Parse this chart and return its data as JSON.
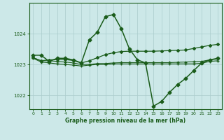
{
  "bg_color": "#cce8e8",
  "grid_color": "#aacccc",
  "line_color": "#1a5c1a",
  "title": "Graphe pression niveau de la mer (hPa)",
  "xlim": [
    -0.5,
    23.5
  ],
  "ylim": [
    1021.55,
    1025.0
  ],
  "yticks": [
    1022,
    1023,
    1024
  ],
  "xticks": [
    0,
    1,
    2,
    3,
    4,
    5,
    6,
    7,
    8,
    9,
    10,
    11,
    12,
    13,
    14,
    15,
    16,
    17,
    18,
    19,
    20,
    21,
    22,
    23
  ],
  "series": [
    {
      "x": [
        0,
        1,
        2,
        3,
        4,
        5,
        6,
        7,
        8,
        9,
        10,
        11,
        12,
        13,
        14,
        15,
        16,
        17,
        18,
        19,
        20,
        21,
        22,
        23
      ],
      "y": [
        1023.3,
        1023.3,
        1023.1,
        1023.2,
        1023.2,
        1023.15,
        1023.05,
        1023.8,
        1024.05,
        1024.55,
        1024.62,
        1024.15,
        1023.5,
        1023.15,
        1023.05,
        1021.65,
        1021.8,
        1022.1,
        1022.35,
        1022.55,
        1022.8,
        1023.05,
        1023.15,
        1023.2
      ],
      "marker": "D",
      "markersize": 2.5,
      "linewidth": 1.1,
      "linestyle": "-"
    },
    {
      "x": [
        0,
        1,
        2,
        3,
        4,
        5,
        6,
        7,
        8,
        9,
        10,
        11,
        12,
        13,
        14,
        15,
        16,
        17,
        18,
        19,
        20,
        21,
        22,
        23
      ],
      "y": [
        1023.22,
        1023.12,
        1023.15,
        1023.16,
        1023.16,
        1023.13,
        1023.05,
        1023.12,
        1023.22,
        1023.32,
        1023.38,
        1023.42,
        1023.43,
        1023.43,
        1023.43,
        1023.43,
        1023.44,
        1023.45,
        1023.46,
        1023.47,
        1023.52,
        1023.57,
        1023.62,
        1023.65
      ],
      "marker": "D",
      "markersize": 2.0,
      "linewidth": 0.9,
      "linestyle": "-"
    },
    {
      "x": [
        0,
        1,
        2,
        3,
        4,
        5,
        6,
        7,
        8,
        9,
        10,
        11,
        12,
        13,
        14,
        15,
        16,
        17,
        18,
        19,
        20,
        21,
        22,
        23
      ],
      "y": [
        1023.22,
        1023.12,
        1023.12,
        1023.1,
        1023.08,
        1023.05,
        1023.0,
        1023.0,
        1023.03,
        1023.03,
        1023.05,
        1023.06,
        1023.06,
        1023.06,
        1023.06,
        1023.06,
        1023.06,
        1023.06,
        1023.07,
        1023.08,
        1023.09,
        1023.1,
        1023.15,
        1023.18
      ],
      "marker": "+",
      "markersize": 3,
      "linewidth": 0.8,
      "linestyle": "-"
    },
    {
      "x": [
        0,
        1,
        2,
        3,
        4,
        5,
        6,
        7,
        8,
        9,
        10,
        11,
        12,
        13,
        14,
        15,
        16,
        17,
        18,
        19,
        20,
        21,
        22,
        23
      ],
      "y": [
        1023.2,
        1023.08,
        1023.05,
        1023.02,
        1023.0,
        1022.98,
        1022.95,
        1022.98,
        1023.0,
        1023.0,
        1023.02,
        1023.02,
        1023.02,
        1023.02,
        1023.02,
        1023.02,
        1023.02,
        1023.02,
        1023.02,
        1023.02,
        1023.02,
        1023.04,
        1023.1,
        1023.12
      ],
      "marker": "+",
      "markersize": 3,
      "linewidth": 0.8,
      "linestyle": "-"
    }
  ]
}
